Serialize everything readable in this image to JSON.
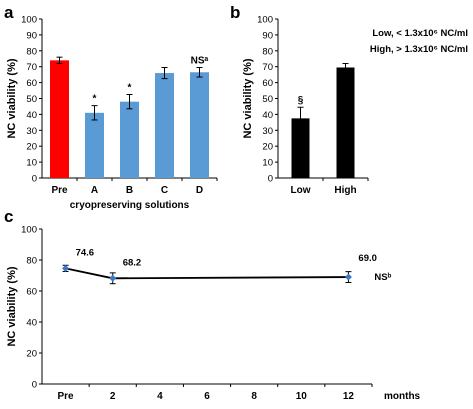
{
  "panels": {
    "a": "a",
    "b": "b",
    "c": "c"
  },
  "chart_data": [
    {
      "type": "bar",
      "panel": "a",
      "categories": [
        "Pre",
        "A",
        "B",
        "C",
        "D"
      ],
      "values": [
        74,
        41,
        48,
        66,
        66.5
      ],
      "errors": [
        2,
        4.5,
        4.5,
        3.5,
        3
      ],
      "bar_colors": [
        "#ff0000",
        "#5b9bd5",
        "#5b9bd5",
        "#5b9bd5",
        "#5b9bd5"
      ],
      "annotations": [
        "",
        "*",
        "*",
        "",
        "NSᵃ"
      ],
      "ylim": [
        0,
        100
      ],
      "yticks": [
        0,
        10,
        20,
        30,
        40,
        50,
        60,
        70,
        80,
        90,
        100
      ],
      "ylabel": "NC viability (%)",
      "xlabel": "cryopreserving solutions",
      "grid": false
    },
    {
      "type": "bar",
      "panel": "b",
      "categories": [
        "Low",
        "High"
      ],
      "values": [
        37.5,
        69.5
      ],
      "errors": [
        7,
        2.5
      ],
      "bar_colors": [
        "#000000",
        "#000000"
      ],
      "annotations": [
        "§",
        ""
      ],
      "ylim": [
        0,
        100
      ],
      "yticks": [
        0,
        10,
        20,
        30,
        40,
        50,
        60,
        70,
        80,
        90,
        100
      ],
      "ylabel": "NC viability (%)",
      "xlabel": "",
      "legend_lines": [
        "Low, < 1.3x10⁶ NC/ml",
        "High, > 1.3x10⁶ NC/ml"
      ],
      "legend_placement": "top-right",
      "grid": false
    },
    {
      "type": "line",
      "panel": "c",
      "x_tick_labels": [
        "Pre",
        "2",
        "4",
        "6",
        "8",
        "10",
        "12"
      ],
      "x_unit": "months",
      "points": [
        {
          "x": "Pre",
          "y": 74.6,
          "err": 2,
          "label": "74.6"
        },
        {
          "x": "2",
          "y": 68.2,
          "err": 3.5,
          "label": "68.2"
        },
        {
          "x": "12",
          "y": 69.0,
          "err": 3.5,
          "label": "69.0"
        }
      ],
      "line_color": "#000000",
      "marker_color": "#3a78c8",
      "ylim": [
        0,
        100
      ],
      "yticks": [
        0,
        20,
        40,
        60,
        80,
        100
      ],
      "ylabel": "NC viability (%)",
      "annotation": "NSᵇ",
      "grid": false
    }
  ]
}
